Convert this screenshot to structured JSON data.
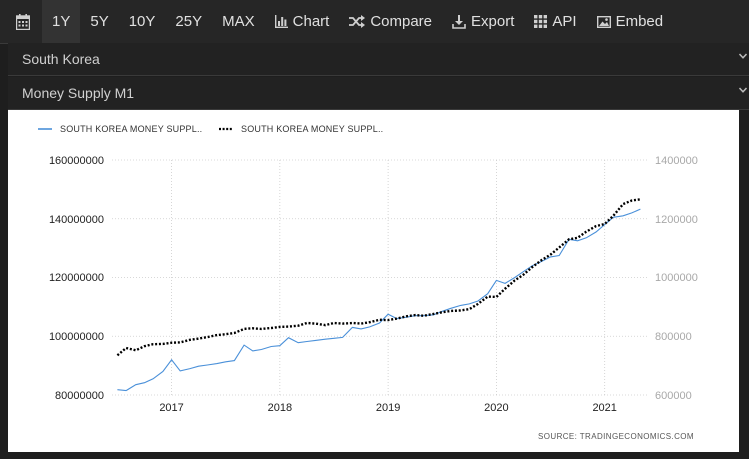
{
  "toolbar": {
    "items": [
      {
        "label": "1Y",
        "active": true
      },
      {
        "label": "5Y"
      },
      {
        "label": "10Y"
      },
      {
        "label": "25Y"
      },
      {
        "label": "MAX"
      },
      {
        "label": "Chart",
        "icon": "bar-chart-icon"
      },
      {
        "label": "Compare",
        "icon": "shuffle-icon"
      },
      {
        "label": "Export",
        "icon": "download-icon"
      },
      {
        "label": "API",
        "icon": "grid-icon"
      },
      {
        "label": "Embed",
        "icon": "image-icon"
      }
    ],
    "calendar_icon": "calendar-icon"
  },
  "selectors": {
    "country": "South Korea",
    "indicator": "Money Supply M1"
  },
  "colors": {
    "series1": "#4a90d9",
    "series2": "#000000",
    "grid": "#cccccc",
    "background": "#1e1e1e"
  },
  "chart_data": {
    "type": "line",
    "legend": [
      "SOUTH KOREA MONEY SUPPL..",
      "SOUTH KOREA MONEY SUPPL.."
    ],
    "legend_position": "top-left",
    "left_ticks": [
      "160000000",
      "140000000",
      "120000000",
      "100000000",
      "80000000"
    ],
    "right_ticks": [
      "1400000",
      "1200000",
      "1000000",
      "800000",
      "600000"
    ],
    "x_ticks": [
      "2017",
      "2018",
      "2019",
      "2020",
      "2021"
    ],
    "y_left_range": [
      80000000,
      160000000
    ],
    "y_right_range": [
      600000,
      1400000
    ],
    "x_range": [
      2016.45,
      2021.4
    ],
    "grid": true,
    "source": "SOURCE: TRADINGECONOMICS.COM",
    "series": [
      {
        "axis": "left",
        "style": "solid",
        "points": [
          [
            2016.5,
            81800000
          ],
          [
            2016.58,
            81500000
          ],
          [
            2016.67,
            83500000
          ],
          [
            2016.75,
            84200000
          ],
          [
            2016.83,
            85500000
          ],
          [
            2016.92,
            88000000
          ],
          [
            2017.0,
            92000000
          ],
          [
            2017.08,
            88200000
          ],
          [
            2017.17,
            89000000
          ],
          [
            2017.25,
            89800000
          ],
          [
            2017.33,
            90200000
          ],
          [
            2017.42,
            90700000
          ],
          [
            2017.5,
            91300000
          ],
          [
            2017.58,
            91700000
          ],
          [
            2017.67,
            97000000
          ],
          [
            2017.75,
            95000000
          ],
          [
            2017.83,
            95500000
          ],
          [
            2017.92,
            96500000
          ],
          [
            2018.0,
            96800000
          ],
          [
            2018.08,
            99500000
          ],
          [
            2018.17,
            97800000
          ],
          [
            2018.25,
            98200000
          ],
          [
            2018.33,
            98600000
          ],
          [
            2018.42,
            99000000
          ],
          [
            2018.5,
            99300000
          ],
          [
            2018.58,
            99600000
          ],
          [
            2018.67,
            103000000
          ],
          [
            2018.75,
            102500000
          ],
          [
            2018.83,
            103200000
          ],
          [
            2018.92,
            104500000
          ],
          [
            2019.0,
            107500000
          ],
          [
            2019.08,
            106000000
          ],
          [
            2019.17,
            106500000
          ],
          [
            2019.25,
            107000000
          ],
          [
            2019.33,
            107000000
          ],
          [
            2019.42,
            107300000
          ],
          [
            2019.5,
            108500000
          ],
          [
            2019.58,
            109500000
          ],
          [
            2019.67,
            110500000
          ],
          [
            2019.75,
            111000000
          ],
          [
            2019.83,
            112000000
          ],
          [
            2019.92,
            114500000
          ],
          [
            2020.0,
            119000000
          ],
          [
            2020.08,
            118000000
          ],
          [
            2020.17,
            120000000
          ],
          [
            2020.25,
            122000000
          ],
          [
            2020.33,
            124000000
          ],
          [
            2020.42,
            125500000
          ],
          [
            2020.5,
            127000000
          ],
          [
            2020.58,
            127500000
          ],
          [
            2020.67,
            133000000
          ],
          [
            2020.75,
            132500000
          ],
          [
            2020.83,
            133500000
          ],
          [
            2020.92,
            135500000
          ],
          [
            2021.0,
            138000000
          ],
          [
            2021.08,
            140500000
          ],
          [
            2021.17,
            141000000
          ],
          [
            2021.25,
            142000000
          ],
          [
            2021.33,
            143300000
          ]
        ]
      },
      {
        "axis": "right",
        "style": "dotted",
        "points": [
          [
            2016.5,
            735000
          ],
          [
            2016.58,
            760000
          ],
          [
            2016.67,
            752000
          ],
          [
            2016.75,
            766000
          ],
          [
            2016.83,
            773000
          ],
          [
            2016.92,
            774000
          ],
          [
            2017.0,
            778000
          ],
          [
            2017.08,
            779000
          ],
          [
            2017.17,
            788000
          ],
          [
            2017.25,
            792000
          ],
          [
            2017.33,
            797000
          ],
          [
            2017.42,
            804000
          ],
          [
            2017.5,
            807000
          ],
          [
            2017.58,
            811000
          ],
          [
            2017.67,
            825000
          ],
          [
            2017.75,
            827000
          ],
          [
            2017.83,
            825000
          ],
          [
            2017.92,
            828000
          ],
          [
            2018.0,
            832000
          ],
          [
            2018.08,
            833000
          ],
          [
            2018.17,
            836000
          ],
          [
            2018.25,
            845000
          ],
          [
            2018.33,
            843000
          ],
          [
            2018.42,
            838000
          ],
          [
            2018.5,
            845000
          ],
          [
            2018.58,
            843000
          ],
          [
            2018.67,
            845000
          ],
          [
            2018.75,
            843000
          ],
          [
            2018.83,
            848000
          ],
          [
            2018.92,
            856000
          ],
          [
            2019.0,
            855000
          ],
          [
            2019.08,
            860000
          ],
          [
            2019.17,
            868000
          ],
          [
            2019.25,
            872000
          ],
          [
            2019.33,
            870000
          ],
          [
            2019.42,
            876000
          ],
          [
            2019.5,
            882000
          ],
          [
            2019.58,
            886000
          ],
          [
            2019.67,
            888000
          ],
          [
            2019.75,
            892000
          ],
          [
            2019.83,
            910000
          ],
          [
            2019.92,
            935000
          ],
          [
            2020.0,
            934000
          ],
          [
            2020.08,
            962000
          ],
          [
            2020.17,
            990000
          ],
          [
            2020.25,
            1010000
          ],
          [
            2020.33,
            1035000
          ],
          [
            2020.42,
            1060000
          ],
          [
            2020.5,
            1078000
          ],
          [
            2020.58,
            1102000
          ],
          [
            2020.67,
            1130000
          ],
          [
            2020.75,
            1135000
          ],
          [
            2020.83,
            1156000
          ],
          [
            2020.92,
            1175000
          ],
          [
            2021.0,
            1182000
          ],
          [
            2021.08,
            1210000
          ],
          [
            2021.17,
            1250000
          ],
          [
            2021.25,
            1262000
          ],
          [
            2021.33,
            1266000
          ]
        ]
      }
    ]
  }
}
